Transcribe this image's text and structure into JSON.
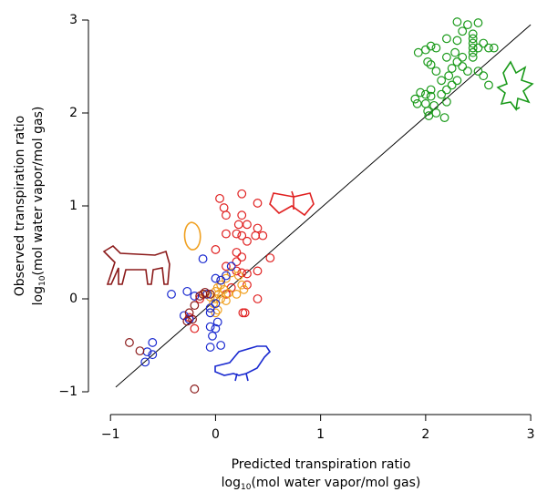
{
  "chart_data": {
    "type": "scatter",
    "xlabel": "Predicted transpiration ratio",
    "ylabel": "Observed transpiration ratio",
    "unit_label": {
      "pre": "log",
      "sub": "10",
      "post": "(mol water vapor/mol gas)"
    },
    "xlim": [
      -1.21,
      3.06
    ],
    "ylim": [
      -1.245,
      3.1
    ],
    "xticks": [
      {
        "value": -1,
        "label": "−1"
      },
      0,
      1,
      2,
      3
    ],
    "yticks": [
      {
        "value": -1,
        "label": "−1"
      },
      0,
      1,
      2,
      3
    ],
    "reference_line": {
      "color": "#000000",
      "x": [
        -0.95,
        3
      ],
      "y": [
        -0.95,
        2.95
      ]
    },
    "series": [
      {
        "color": "#1a9a1a",
        "x": [
          2.3,
          2.4,
          2.5,
          2.35,
          2.45,
          2.2,
          2.3,
          2.45,
          2.45,
          2.45,
          2.45,
          2.45,
          2.55,
          2.6,
          2.65,
          2.5,
          1.93,
          2.0,
          2.05,
          2.1,
          2.02,
          2.05,
          2.2,
          2.3,
          2.35,
          2.4,
          2.5,
          2.55,
          2.22,
          2.15,
          2.25,
          2.2,
          2.15,
          2.2,
          1.95,
          2.0,
          1.9,
          2.05,
          1.92,
          2.0,
          2.08,
          2.1,
          2.02,
          2.03,
          2.18,
          2.05,
          2.3,
          2.6,
          2.28,
          2.35,
          2.25,
          2.1
        ],
        "y": [
          2.98,
          2.95,
          2.97,
          2.88,
          2.85,
          2.8,
          2.78,
          2.8,
          2.75,
          2.7,
          2.65,
          2.6,
          2.75,
          2.7,
          2.7,
          2.7,
          2.65,
          2.68,
          2.72,
          2.7,
          2.55,
          2.52,
          2.6,
          2.55,
          2.5,
          2.45,
          2.45,
          2.4,
          2.4,
          2.35,
          2.3,
          2.25,
          2.2,
          2.12,
          2.22,
          2.2,
          2.15,
          2.18,
          2.1,
          2.1,
          2.08,
          2.0,
          2.02,
          1.97,
          1.95,
          2.25,
          2.35,
          2.3,
          2.65,
          2.6,
          2.48,
          2.45
        ]
      },
      {
        "color": "#e02020",
        "x": [
          0.25,
          0.04,
          0.4,
          0.08,
          0.1,
          0.25,
          0.22,
          0.3,
          0.4,
          0.1,
          0.2,
          0.25,
          0.38,
          0.45,
          0.3,
          0.2,
          0.0,
          0.25,
          0.2,
          0.1,
          0.2,
          0.25,
          0.3,
          0.52,
          0.4,
          0.3,
          0.4,
          0.26,
          0.28,
          -0.25,
          -0.2,
          -0.15,
          0.1,
          0.15
        ],
        "y": [
          1.13,
          1.08,
          1.03,
          0.98,
          0.9,
          0.9,
          0.8,
          0.8,
          0.76,
          0.7,
          0.7,
          0.68,
          0.68,
          0.68,
          0.62,
          0.5,
          0.53,
          0.45,
          0.4,
          0.35,
          0.3,
          0.28,
          0.27,
          0.44,
          0.3,
          0.15,
          0.0,
          -0.15,
          -0.15,
          -0.2,
          -0.32,
          0.0,
          0.05,
          0.12
        ]
      },
      {
        "color": "#f0a020",
        "x": [
          0.0,
          0.02,
          0.05,
          0.03,
          0.0,
          -0.02,
          0.05,
          0.1,
          0.15,
          0.22,
          0.25,
          0.27,
          0.2,
          0.1,
          -0.1,
          -0.05,
          0.02,
          0.0,
          0.05,
          -0.05,
          0.08,
          0.12
        ],
        "y": [
          0.08,
          0.12,
          0.15,
          0.05,
          0.0,
          -0.05,
          0.2,
          0.22,
          0.28,
          0.25,
          0.15,
          0.1,
          0.05,
          -0.02,
          0.05,
          -0.1,
          -0.12,
          -0.15,
          0.0,
          0.02,
          0.1,
          0.06
        ]
      },
      {
        "color": "#1a2ad0",
        "x": [
          -0.12,
          -0.42,
          -0.27,
          -0.3,
          -0.25,
          -0.2,
          0.0,
          0.05,
          0.15,
          0.1,
          -0.08,
          -0.05,
          -0.05,
          -0.05,
          -0.03,
          -0.05,
          0.05,
          0.02,
          0.0,
          -0.6,
          -0.6,
          -0.65,
          -0.67,
          0.0
        ],
        "y": [
          0.43,
          0.05,
          0.08,
          -0.18,
          -0.22,
          0.03,
          0.22,
          0.2,
          0.35,
          0.25,
          0.05,
          -0.1,
          -0.15,
          -0.3,
          -0.4,
          -0.52,
          -0.5,
          -0.25,
          -0.32,
          -0.47,
          -0.6,
          -0.57,
          -0.68,
          -0.05
        ]
      },
      {
        "color": "#8b1a1a",
        "x": [
          -0.82,
          -0.72,
          -0.2,
          -0.27,
          -0.22,
          -0.25,
          -0.2,
          -0.12,
          -0.1,
          -0.05,
          -0.15
        ],
        "y": [
          -0.47,
          -0.56,
          -0.97,
          -0.24,
          -0.22,
          -0.15,
          -0.07,
          0.05,
          0.07,
          0.05,
          0.03
        ]
      }
    ]
  }
}
